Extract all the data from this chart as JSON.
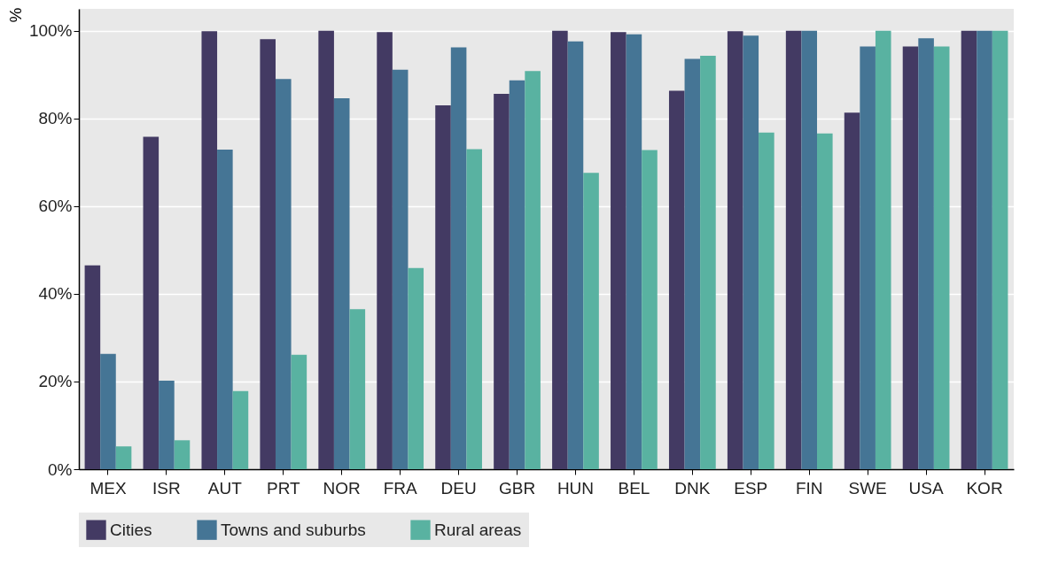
{
  "chart_data": {
    "type": "bar",
    "ylabel": "%",
    "categories": [
      "MEX",
      "ISR",
      "AUT",
      "PRT",
      "NOR",
      "FRA",
      "DEU",
      "GBR",
      "HUN",
      "BEL",
      "DNK",
      "ESP",
      "FIN",
      "SWE",
      "USA",
      "KOR"
    ],
    "series": [
      {
        "name": "Cities",
        "color": "#433a63",
        "values": [
          46.5,
          75.8,
          99.9,
          98.1,
          100,
          99.7,
          83.0,
          85.6,
          100,
          99.7,
          86.3,
          99.9,
          100,
          81.3,
          96.4,
          100
        ]
      },
      {
        "name": "Towns and suburbs",
        "color": "#457595",
        "values": [
          26.3,
          20.2,
          72.9,
          89.0,
          84.6,
          91.1,
          96.2,
          88.7,
          97.6,
          99.2,
          93.6,
          98.9,
          100,
          96.4,
          98.3,
          100
        ]
      },
      {
        "name": "Rural areas",
        "color": "#59b2a1",
        "values": [
          5.2,
          6.6,
          17.8,
          26.1,
          36.5,
          45.9,
          73.0,
          90.8,
          67.6,
          72.8,
          94.3,
          76.8,
          76.6,
          100,
          96.4,
          100
        ]
      }
    ],
    "ylim": [
      0,
      105
    ],
    "yticks": [
      {
        "value": 0,
        "label": "0%"
      },
      {
        "value": 20,
        "label": "20%"
      },
      {
        "value": 40,
        "label": "40%"
      },
      {
        "value": 60,
        "label": "60%"
      },
      {
        "value": 80,
        "label": "80%"
      },
      {
        "value": 100,
        "label": "100%"
      }
    ],
    "grid": "y",
    "legend": "bottom"
  }
}
